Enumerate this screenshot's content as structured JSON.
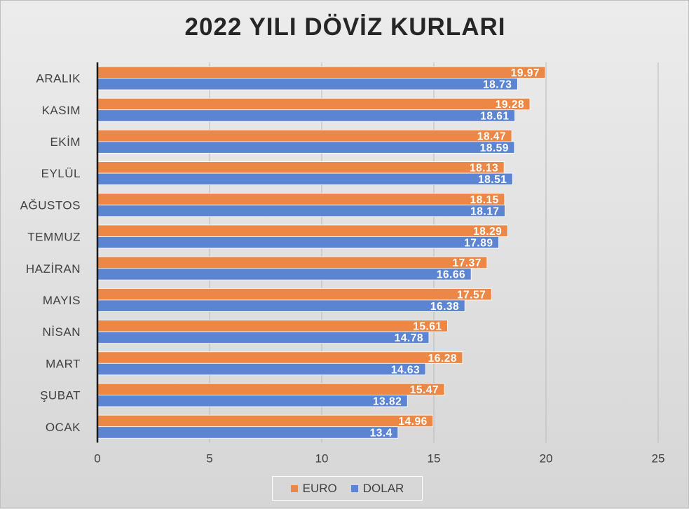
{
  "chart_data": {
    "type": "bar",
    "orientation": "horizontal",
    "title": "2022 YILI DÖVİZ KURLARI",
    "xlabel": "",
    "ylabel": "",
    "categories": [
      "ARALIK",
      "KASIM",
      "EKİM",
      "EYLÜL",
      "AĞUSTOS",
      "TEMMUZ",
      "HAZİRAN",
      "MAYIS",
      "NİSAN",
      "MART",
      "ŞUBAT",
      "OCAK"
    ],
    "series": [
      {
        "name": "EURO",
        "color": "#ED8745",
        "values": [
          19.97,
          19.28,
          18.47,
          18.13,
          18.15,
          18.29,
          17.37,
          17.57,
          15.61,
          16.28,
          15.47,
          14.96
        ],
        "labels": [
          "19.97",
          "19.28",
          "18.47",
          "18.13",
          "18.15",
          "18.29",
          "17.37",
          "17.57",
          "15.61",
          "16.28",
          "15.47",
          "14.96"
        ]
      },
      {
        "name": "DOLAR",
        "color": "#5B85D3",
        "values": [
          18.73,
          18.61,
          18.59,
          18.51,
          18.17,
          17.89,
          16.66,
          16.38,
          14.78,
          14.63,
          13.82,
          13.4
        ],
        "labels": [
          "18.73",
          "18.61",
          "18.59",
          "18.51",
          "18.17",
          "17.89",
          "16.66",
          "16.38",
          "14.78",
          "14.63",
          "13.82",
          "13.4"
        ]
      }
    ],
    "xlim": [
      0,
      25
    ],
    "xticks": [
      "0",
      "5",
      "10",
      "15",
      "20",
      "25"
    ],
    "grid": true,
    "legend_position": "bottom"
  }
}
